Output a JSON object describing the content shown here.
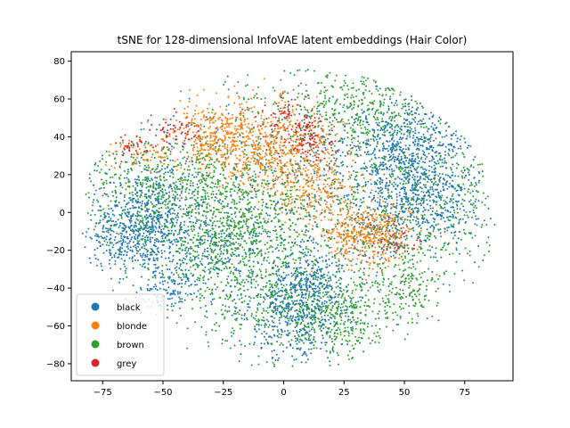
{
  "chart_data": {
    "type": "scatter",
    "title": "tSNE for 128-dimensional InfoVAE latent embeddings (Hair Color)",
    "xlabel": "",
    "ylabel": "",
    "xlim": [
      -88,
      95
    ],
    "ylim": [
      -89,
      85
    ],
    "xticks": [
      -75,
      -50,
      -25,
      0,
      25,
      50,
      75
    ],
    "yticks": [
      -80,
      -60,
      -40,
      -20,
      0,
      20,
      40,
      60,
      80
    ],
    "xtick_labels": [
      "−75",
      "−50",
      "−25",
      "0",
      "25",
      "50",
      "75"
    ],
    "ytick_labels": [
      "−80",
      "−60",
      "−40",
      "−20",
      "0",
      "20",
      "40",
      "60",
      "80"
    ],
    "grid": false,
    "legend_position": "lower-left",
    "series": [
      {
        "name": "black",
        "color": "#1f77b4",
        "clusters": [
          {
            "center": [
              55,
              15
            ],
            "spread": [
              14,
              18
            ],
            "count": 850
          },
          {
            "center": [
              50,
              40
            ],
            "spread": [
              14,
              12
            ],
            "count": 300
          },
          {
            "center": [
              -55,
              0
            ],
            "spread": [
              12,
              14
            ],
            "count": 500
          },
          {
            "center": [
              -65,
              -15
            ],
            "spread": [
              9,
              10
            ],
            "count": 250
          },
          {
            "center": [
              5,
              -55
            ],
            "spread": [
              10,
              12
            ],
            "count": 450
          },
          {
            "center": [
              12,
              -35
            ],
            "spread": [
              8,
              8
            ],
            "count": 200
          },
          {
            "center": [
              0,
              0
            ],
            "spread": [
              35,
              35
            ],
            "count": 600
          },
          {
            "center": [
              -48,
              -40
            ],
            "spread": [
              6,
              6
            ],
            "count": 120
          },
          {
            "center": [
              -30,
              -20
            ],
            "spread": [
              12,
              10
            ],
            "count": 200
          }
        ]
      },
      {
        "name": "blonde",
        "color": "#ff7f0e",
        "clusters": [
          {
            "center": [
              -25,
              40
            ],
            "spread": [
              11,
              9
            ],
            "count": 450
          },
          {
            "center": [
              0,
              30
            ],
            "spread": [
              12,
              13
            ],
            "count": 500
          },
          {
            "center": [
              35,
              -12
            ],
            "spread": [
              9,
              8
            ],
            "count": 450
          },
          {
            "center": [
              15,
              10
            ],
            "spread": [
              8,
              8
            ],
            "count": 150
          },
          {
            "center": [
              -60,
              30
            ],
            "spread": [
              7,
              5
            ],
            "count": 60
          }
        ]
      },
      {
        "name": "brown",
        "color": "#2ca02c",
        "clusters": [
          {
            "center": [
              -20,
              -10
            ],
            "spread": [
              18,
              14
            ],
            "count": 650
          },
          {
            "center": [
              20,
              -55
            ],
            "spread": [
              12,
              10
            ],
            "count": 350
          },
          {
            "center": [
              30,
              55
            ],
            "spread": [
              18,
              12
            ],
            "count": 350
          },
          {
            "center": [
              -60,
              10
            ],
            "spread": [
              14,
              14
            ],
            "count": 300
          },
          {
            "center": [
              60,
              5
            ],
            "spread": [
              15,
              18
            ],
            "count": 350
          },
          {
            "center": [
              -10,
              -45
            ],
            "spread": [
              20,
              12
            ],
            "count": 300
          },
          {
            "center": [
              0,
              0
            ],
            "spread": [
              35,
              35
            ],
            "count": 600
          },
          {
            "center": [
              50,
              -40
            ],
            "spread": [
              8,
              8
            ],
            "count": 150
          },
          {
            "center": [
              -30,
              20
            ],
            "spread": [
              15,
              10
            ],
            "count": 200
          }
        ]
      },
      {
        "name": "grey",
        "color": "#d62728",
        "clusters": [
          {
            "center": [
              -45,
              42
            ],
            "spread": [
              6,
              5
            ],
            "count": 70
          },
          {
            "center": [
              0,
              50
            ],
            "spread": [
              6,
              7
            ],
            "count": 80
          },
          {
            "center": [
              12,
              35
            ],
            "spread": [
              5,
              5
            ],
            "count": 80
          },
          {
            "center": [
              -65,
              35
            ],
            "spread": [
              4,
              3
            ],
            "count": 35
          },
          {
            "center": [
              45,
              -15
            ],
            "spread": [
              5,
              7
            ],
            "count": 50
          },
          {
            "center": [
              10,
              45
            ],
            "spread": [
              4,
              4
            ],
            "count": 40
          }
        ]
      }
    ]
  }
}
